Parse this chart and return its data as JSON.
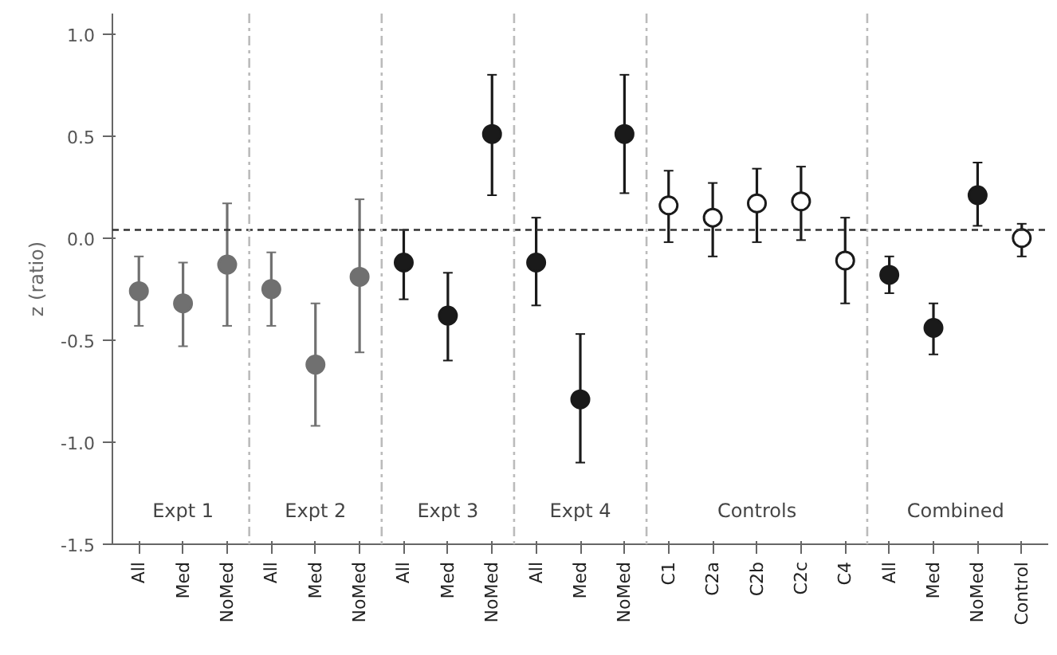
{
  "chart_data": {
    "type": "scatter",
    "ylabel": "z (ratio)",
    "categories": [
      "All",
      "Med",
      "NoMed",
      "All",
      "Med",
      "NoMed",
      "All",
      "Med",
      "NoMed",
      "All",
      "Med",
      "NoMed",
      "C1",
      "C2a",
      "C2b",
      "C2c",
      "C4",
      "All",
      "Med",
      "NoMed",
      "Control"
    ],
    "series": [
      {
        "color": "#707070",
        "values": [
          -0.26,
          -0.32,
          -0.13,
          -0.25,
          -0.62,
          -0.19,
          null,
          null,
          null,
          null,
          null,
          null,
          null,
          null,
          null,
          null,
          null,
          null,
          null,
          null,
          null
        ],
        "errors": [
          [
            -0.43,
            -0.09
          ],
          [
            -0.53,
            -0.12
          ],
          [
            -0.43,
            0.17
          ],
          [
            -0.43,
            -0.07
          ],
          [
            -0.92,
            -0.32
          ],
          [
            -0.56,
            0.19
          ],
          null,
          null,
          null,
          null,
          null,
          null,
          null,
          null,
          null,
          null,
          null,
          null,
          null,
          null,
          null
        ]
      },
      {
        "color": "#1a1a1a",
        "values": [
          null,
          null,
          null,
          null,
          null,
          null,
          -0.12,
          -0.38,
          0.51,
          -0.12,
          -0.79,
          0.51,
          null,
          null,
          null,
          null,
          null,
          -0.18,
          -0.44,
          0.21,
          null
        ],
        "errors": [
          null,
          null,
          null,
          null,
          null,
          null,
          [
            -0.3,
            0.04
          ],
          [
            -0.6,
            -0.17
          ],
          [
            0.21,
            0.8
          ],
          [
            -0.33,
            0.1
          ],
          [
            -1.1,
            -0.47
          ],
          [
            0.22,
            0.8
          ],
          null,
          null,
          null,
          null,
          null,
          [
            -0.27,
            -0.09
          ],
          [
            -0.57,
            -0.32
          ],
          [
            0.06,
            0.37
          ],
          null
        ]
      },
      {
        "color": "#ffffff",
        "values": [
          null,
          null,
          null,
          null,
          null,
          null,
          null,
          null,
          null,
          null,
          null,
          null,
          0.16,
          0.1,
          0.17,
          0.18,
          -0.11,
          null,
          null,
          null,
          0.0
        ],
        "errors": [
          null,
          null,
          null,
          null,
          null,
          null,
          null,
          null,
          null,
          null,
          null,
          null,
          [
            -0.02,
            0.33
          ],
          [
            -0.09,
            0.27
          ],
          [
            -0.02,
            0.34
          ],
          [
            -0.01,
            0.35
          ],
          [
            -0.32,
            0.1
          ],
          null,
          null,
          null,
          [
            -0.09,
            0.07
          ]
        ]
      }
    ],
    "ylim": [
      -1.5,
      1.1
    ],
    "yticks": [
      {
        "value": 1.0,
        "label": "1.0"
      },
      {
        "value": 0.5,
        "label": "0.5"
      },
      {
        "value": 0.0,
        "label": "0.0"
      },
      {
        "value": -0.5,
        "label": "-0.5"
      },
      {
        "value": -1.0,
        "label": "-1.0"
      },
      {
        "value": -1.5,
        "label": "-1.5"
      }
    ],
    "ref_lines": [
      {
        "axis": "y",
        "value": 0.04,
        "label": null,
        "color": "#333333",
        "line_style": "dashed"
      }
    ],
    "annotations": [
      "Expt 1",
      "Expt 2",
      "Expt 3",
      "Expt 4",
      "Controls",
      "Combined"
    ],
    "marker": "circle",
    "grid": false
  }
}
